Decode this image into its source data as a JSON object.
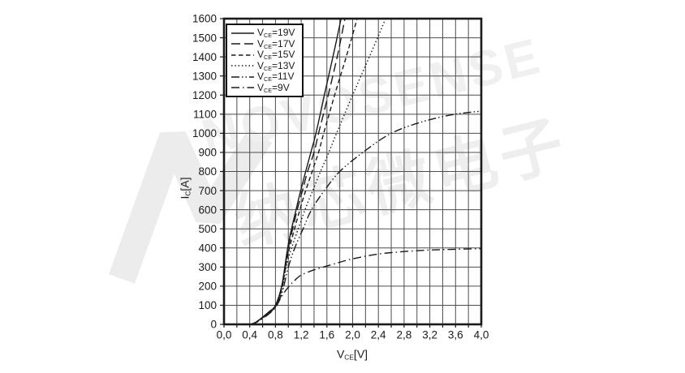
{
  "figure": {
    "background": "#ffffff",
    "ink": "#1a1a1a",
    "grid_color": "#4d4d4d",
    "watermark_color": "#f0f0f0"
  },
  "watermark": {
    "logo": "novosense-n-logo",
    "text_en": "NOVOSENSE",
    "text_cn": "纳芯微电子"
  },
  "chart_data": {
    "type": "line",
    "title": "",
    "grid": "on",
    "legend_position": "top-left",
    "x_axis": {
      "label_pre": "V",
      "label_sub": "CE",
      "label_post": "[V]",
      "min": 0,
      "max": 4,
      "grid_step": 0.2,
      "tick_step": 0.2,
      "tick_labels": [
        {
          "value": 0.0,
          "text": "0,0"
        },
        {
          "value": 0.4,
          "text": "0,4"
        },
        {
          "value": 0.8,
          "text": "0,8"
        },
        {
          "value": 1.2,
          "text": "1,2"
        },
        {
          "value": 1.6,
          "text": "1,6"
        },
        {
          "value": 2.0,
          "text": "2,0"
        },
        {
          "value": 2.4,
          "text": "2,4"
        },
        {
          "value": 2.8,
          "text": "2,8"
        },
        {
          "value": 3.2,
          "text": "3,2"
        },
        {
          "value": 3.6,
          "text": "3,6"
        },
        {
          "value": 4.0,
          "text": "4,0"
        }
      ]
    },
    "y_axis": {
      "label_pre": "I",
      "label_sub": "C",
      "label_post": "[A]",
      "min": 0,
      "max": 1600,
      "grid_step": 100,
      "tick_step": 100,
      "tick_labels": [
        {
          "value": 0,
          "text": "0"
        },
        {
          "value": 100,
          "text": "100"
        },
        {
          "value": 200,
          "text": "200"
        },
        {
          "value": 300,
          "text": "300"
        },
        {
          "value": 400,
          "text": "400"
        },
        {
          "value": 500,
          "text": "500"
        },
        {
          "value": 600,
          "text": "600"
        },
        {
          "value": 700,
          "text": "700"
        },
        {
          "value": 800,
          "text": "800"
        },
        {
          "value": 900,
          "text": "900"
        },
        {
          "value": 1000,
          "text": "1000"
        },
        {
          "value": 1100,
          "text": "1100"
        },
        {
          "value": 1200,
          "text": "1200"
        },
        {
          "value": 1300,
          "text": "1300"
        },
        {
          "value": 1400,
          "text": "1400"
        },
        {
          "value": 1500,
          "text": "1500"
        },
        {
          "value": 1600,
          "text": "1600"
        }
      ]
    },
    "series": [
      {
        "id": "19v",
        "dash": "solid",
        "label_pre": "V",
        "label_sub": "CE",
        "label_post": "=19V",
        "points": [
          [
            0.42,
            0
          ],
          [
            0.5,
            12
          ],
          [
            0.6,
            38
          ],
          [
            0.7,
            66
          ],
          [
            0.8,
            100
          ],
          [
            0.9,
            205
          ],
          [
            1.0,
            420
          ],
          [
            1.12,
            600
          ],
          [
            1.2,
            710
          ],
          [
            1.27,
            800
          ],
          [
            1.35,
            900
          ],
          [
            1.43,
            1000
          ],
          [
            1.56,
            1200
          ],
          [
            1.7,
            1410
          ],
          [
            1.82,
            1600
          ],
          [
            1.88,
            1700
          ]
        ]
      },
      {
        "id": "17v",
        "dash": "long-dash",
        "label_pre": "V",
        "label_sub": "CE",
        "label_post": "=17V",
        "points": [
          [
            0.42,
            0
          ],
          [
            0.5,
            12
          ],
          [
            0.6,
            37
          ],
          [
            0.7,
            64
          ],
          [
            0.8,
            98
          ],
          [
            0.9,
            198
          ],
          [
            1.0,
            400
          ],
          [
            1.14,
            600
          ],
          [
            1.22,
            700
          ],
          [
            1.3,
            800
          ],
          [
            1.4,
            900
          ],
          [
            1.47,
            1000
          ],
          [
            1.62,
            1200
          ],
          [
            1.76,
            1400
          ],
          [
            1.88,
            1600
          ],
          [
            1.94,
            1700
          ]
        ]
      },
      {
        "id": "15v",
        "dash": "dash",
        "label_pre": "V",
        "label_sub": "CE",
        "label_post": "=15V",
        "points": [
          [
            0.42,
            0
          ],
          [
            0.5,
            11
          ],
          [
            0.6,
            36
          ],
          [
            0.7,
            62
          ],
          [
            0.8,
            96
          ],
          [
            0.9,
            190
          ],
          [
            1.0,
            375
          ],
          [
            1.18,
            600
          ],
          [
            1.27,
            700
          ],
          [
            1.37,
            800
          ],
          [
            1.47,
            900
          ],
          [
            1.55,
            1000
          ],
          [
            1.72,
            1200
          ],
          [
            1.9,
            1400
          ],
          [
            2.07,
            1600
          ],
          [
            2.13,
            1680
          ]
        ]
      },
      {
        "id": "13v",
        "dash": "dot",
        "label_pre": "V",
        "label_sub": "CE",
        "label_post": "=13V",
        "points": [
          [
            0.42,
            0
          ],
          [
            0.5,
            11
          ],
          [
            0.6,
            35
          ],
          [
            0.7,
            60
          ],
          [
            0.8,
            94
          ],
          [
            0.9,
            178
          ],
          [
            1.0,
            345
          ],
          [
            1.26,
            600
          ],
          [
            1.38,
            700
          ],
          [
            1.5,
            800
          ],
          [
            1.63,
            900
          ],
          [
            1.75,
            1000
          ],
          [
            2.0,
            1200
          ],
          [
            2.26,
            1400
          ],
          [
            2.51,
            1600
          ],
          [
            2.56,
            1670
          ]
        ]
      },
      {
        "id": "11v",
        "dash": "dash-dot-dot",
        "label_pre": "V",
        "label_sub": "CE",
        "label_post": "=11V",
        "points": [
          [
            0.42,
            0
          ],
          [
            0.5,
            10
          ],
          [
            0.6,
            33
          ],
          [
            0.7,
            57
          ],
          [
            0.8,
            92
          ],
          [
            0.9,
            162
          ],
          [
            1.0,
            300
          ],
          [
            1.1,
            400
          ],
          [
            1.23,
            500
          ],
          [
            1.36,
            600
          ],
          [
            1.56,
            700
          ],
          [
            1.8,
            800
          ],
          [
            2.16,
            900
          ],
          [
            2.6,
            1000
          ],
          [
            3.1,
            1062
          ],
          [
            3.6,
            1100
          ],
          [
            4.0,
            1116
          ]
        ]
      },
      {
        "id": "9v",
        "dash": "dash-dot",
        "label_pre": "V",
        "label_sub": "CE",
        "label_post": "=9V",
        "points": [
          [
            0.42,
            0
          ],
          [
            0.5,
            10
          ],
          [
            0.6,
            30
          ],
          [
            0.7,
            55
          ],
          [
            0.8,
            88
          ],
          [
            0.9,
            148
          ],
          [
            1.0,
            195
          ],
          [
            1.1,
            230
          ],
          [
            1.2,
            258
          ],
          [
            1.4,
            285
          ],
          [
            1.6,
            305
          ],
          [
            1.8,
            325
          ],
          [
            2.0,
            343
          ],
          [
            2.4,
            368
          ],
          [
            2.8,
            381
          ],
          [
            3.2,
            389
          ],
          [
            3.6,
            393
          ],
          [
            4.0,
            396
          ]
        ]
      }
    ]
  }
}
